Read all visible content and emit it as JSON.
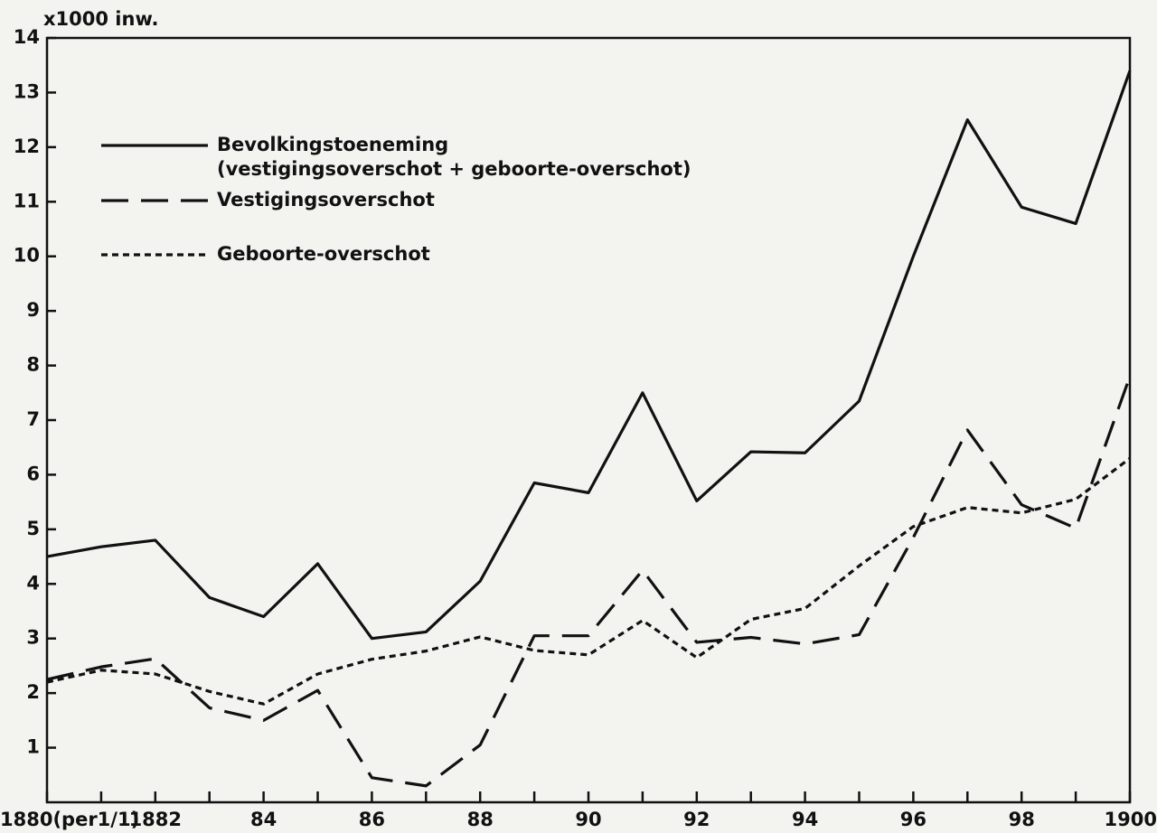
{
  "chart_data": {
    "type": "line",
    "y_axis_label": "x1000 inw.",
    "x": [
      1880,
      1881,
      1882,
      1883,
      1884,
      1885,
      1886,
      1887,
      1888,
      1889,
      1890,
      1891,
      1892,
      1893,
      1894,
      1895,
      1896,
      1897,
      1898,
      1899,
      1900
    ],
    "xlim": [
      1880,
      1900
    ],
    "xticks": [
      {
        "value": 1880,
        "label": "1880(per1/1)"
      },
      1882,
      {
        "value": 1884,
        "label": "84"
      },
      {
        "value": 1886,
        "label": "86"
      },
      {
        "value": 1888,
        "label": "88"
      },
      {
        "value": 1890,
        "label": "90"
      },
      {
        "value": 1892,
        "label": "92"
      },
      {
        "value": 1894,
        "label": "94"
      },
      {
        "value": 1896,
        "label": "96"
      },
      {
        "value": 1898,
        "label": "98"
      },
      1900
    ],
    "ylim": [
      0,
      14
    ],
    "yticks": [
      1,
      2,
      3,
      4,
      5,
      6,
      7,
      8,
      9,
      10,
      11,
      12,
      13,
      14
    ],
    "series": [
      {
        "name": "Bevolkingstoeneming",
        "legend_detail": "(vestigingsoverschot + geboorte-overschot)",
        "color": "#111111",
        "dash": "solid",
        "values": [
          4.5,
          4.68,
          4.8,
          3.75,
          3.4,
          4.37,
          3.0,
          3.12,
          4.05,
          5.85,
          5.67,
          7.5,
          5.52,
          6.42,
          6.4,
          7.35,
          10.0,
          12.5,
          10.9,
          10.6,
          13.4
        ]
      },
      {
        "name": "Vestigingsoverschot",
        "color": "#111111",
        "dash": "long",
        "values": [
          2.25,
          2.48,
          2.63,
          1.73,
          1.5,
          2.05,
          0.45,
          0.3,
          1.05,
          3.05,
          3.05,
          4.25,
          2.93,
          3.02,
          2.9,
          3.07,
          4.85,
          6.82,
          5.45,
          5.02,
          7.8
        ]
      },
      {
        "name": "Geboorte-overschot",
        "color": "#111111",
        "dash": "short",
        "values": [
          2.2,
          2.42,
          2.35,
          2.03,
          1.8,
          2.35,
          2.62,
          2.77,
          3.03,
          2.78,
          2.7,
          3.33,
          2.65,
          3.35,
          3.55,
          4.33,
          5.05,
          5.4,
          5.3,
          5.55,
          6.3
        ]
      }
    ]
  }
}
